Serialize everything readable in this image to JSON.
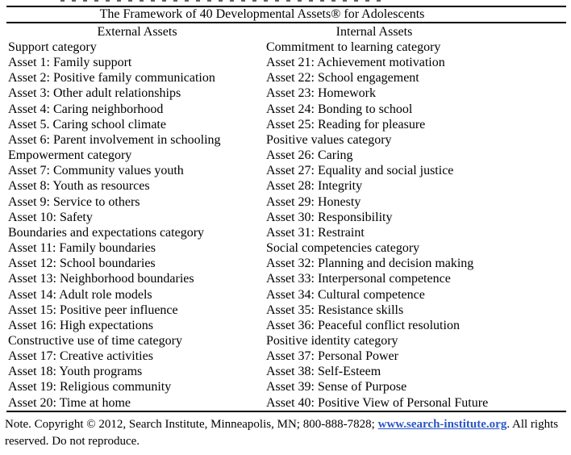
{
  "table": {
    "title": "The Framework of 40 Developmental Assets® for Adolescents",
    "columns": [
      {
        "header": "External Assets",
        "rows": [
          "Support category",
          "Asset 1: Family support",
          "Asset 2: Positive family communication",
          "Asset 3: Other adult relationships",
          "Asset 4: Caring neighborhood",
          "Asset 5. Caring school climate",
          "Asset 6: Parent involvement in schooling",
          "Empowerment category",
          "Asset 7: Community values youth",
          "Asset 8: Youth as resources",
          "Asset 9: Service to others",
          "Asset 10: Safety",
          "Boundaries and expectations category",
          "Asset 11: Family boundaries",
          "Asset 12: School boundaries",
          "Asset 13: Neighborhood boundaries",
          "Asset 14: Adult role models",
          "Asset 15: Positive peer influence",
          "Asset 16: High expectations",
          "Constructive use of time category",
          "Asset 17: Creative activities",
          "Asset 18: Youth programs",
          "Asset 19: Religious community",
          "Asset 20: Time at home"
        ]
      },
      {
        "header": "Internal Assets",
        "rows": [
          "Commitment to learning category",
          "Asset 21: Achievement motivation",
          "Asset 22: School engagement",
          "Asset 23: Homework",
          "Asset 24: Bonding to school",
          "Asset 25: Reading for pleasure",
          "Positive values category",
          "Asset 26: Caring",
          "Asset 27: Equality and social justice",
          "Asset 28: Integrity",
          "Asset 29: Honesty",
          "Asset 30: Responsibility",
          "Asset 31: Restraint",
          "Social competencies category",
          "Asset 32: Planning and decision making",
          "Asset 33: Interpersonal competence",
          "Asset 34: Cultural competence",
          "Asset 35: Resistance skills",
          "Asset 36: Peaceful conflict resolution",
          "Positive identity category",
          "Asset 37: Personal Power",
          "Asset 38: Self-Esteem",
          "Asset 39: Sense of Purpose",
          "Asset 40: Positive View of Personal Future"
        ]
      }
    ]
  },
  "footer": {
    "line1_before_link": "Note. Copyright © 2012, Search Institute, Minneapolis, MN; 800-888-7828; ",
    "link_text": "www.search-institute.org",
    "line1_after_link": ". All rights",
    "line2": "reserved. Do not reproduce.",
    "link_color": "#2a56c6"
  }
}
